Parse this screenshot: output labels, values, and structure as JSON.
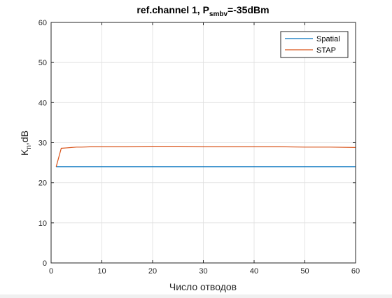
{
  "chart_data": {
    "type": "line",
    "title": {
      "pre": "ref.channel 1, P",
      "sub": "smbv",
      "post": "=-35dBm"
    },
    "xlabel": "Число отводов",
    "ylabel": {
      "main": "K",
      "sub": "n",
      "post": ",dB"
    },
    "xlim": [
      0,
      60
    ],
    "ylim": [
      0,
      60
    ],
    "xticks": [
      0,
      10,
      20,
      30,
      40,
      50,
      60
    ],
    "yticks": [
      0,
      10,
      20,
      30,
      40,
      50,
      60
    ],
    "grid": true,
    "legend_position": "top-right",
    "series": [
      {
        "name": "Spatial",
        "color": "#0072bd",
        "points": [
          [
            1,
            24.0
          ],
          [
            60,
            24.0
          ]
        ]
      },
      {
        "name": "STAP",
        "color": "#d95319",
        "points": [
          [
            1,
            24.0
          ],
          [
            2,
            28.6
          ],
          [
            3,
            28.7
          ],
          [
            4,
            28.8
          ],
          [
            5,
            28.9
          ],
          [
            6,
            28.9
          ],
          [
            8,
            29.0
          ],
          [
            10,
            29.0
          ],
          [
            15,
            29.0
          ],
          [
            20,
            29.1
          ],
          [
            25,
            29.1
          ],
          [
            30,
            29.0
          ],
          [
            35,
            29.0
          ],
          [
            40,
            29.0
          ],
          [
            45,
            29.0
          ],
          [
            50,
            28.9
          ],
          [
            55,
            28.9
          ],
          [
            60,
            28.8
          ]
        ]
      }
    ]
  }
}
